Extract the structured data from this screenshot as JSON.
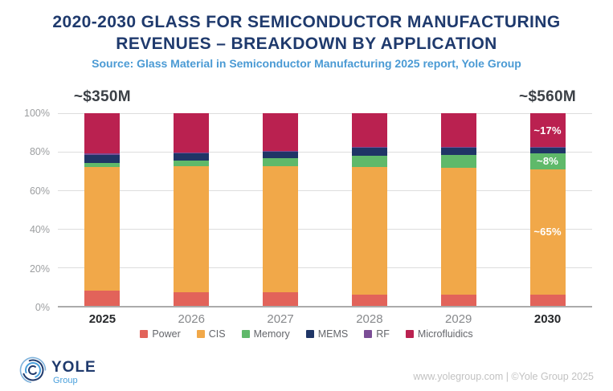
{
  "header": {
    "title_line1": "2020-2030 GLASS FOR SEMICONDUCTOR MANUFACTURING",
    "title_line2": "REVENUES – BREAKDOWN BY APPLICATION",
    "source": "Source: Glass Material in Semiconductor Manufacturing 2025 report, Yole Group"
  },
  "chart_data": {
    "type": "bar",
    "stacked": true,
    "normalized": "100% stacked",
    "title": "2020-2030 Glass for Semiconductor Manufacturing Revenues – Breakdown by Application",
    "xlabel": "",
    "ylabel": "",
    "ylim": [
      0,
      100
    ],
    "grid": true,
    "legend_position": "bottom",
    "categories": [
      "2025",
      "2026",
      "2027",
      "2028",
      "2029",
      "2030"
    ],
    "bold_categories": [
      "2025",
      "2030"
    ],
    "yticks": [
      "100%",
      "80%",
      "60%",
      "40%",
      "20%",
      "0%"
    ],
    "series": [
      {
        "name": "Power",
        "color": "#E2635A",
        "values": [
          8,
          7,
          7,
          6,
          6,
          6
        ]
      },
      {
        "name": "CIS",
        "color": "#F1A849",
        "values": [
          64,
          65.5,
          65.5,
          66,
          65.5,
          65
        ]
      },
      {
        "name": "Memory",
        "color": "#5FB96A",
        "values": [
          2,
          3,
          4,
          6,
          7,
          8
        ]
      },
      {
        "name": "MEMS",
        "color": "#1F3566",
        "values": [
          4.5,
          3.5,
          3.5,
          4,
          3.5,
          3
        ]
      },
      {
        "name": "RF",
        "color": "#7B4D96",
        "values": [
          0.5,
          0.5,
          0.5,
          0.5,
          0.5,
          0.5
        ]
      },
      {
        "name": "Microfluidics",
        "color": "#BA2150",
        "values": [
          21,
          20.5,
          19.5,
          17.5,
          17.5,
          17.5
        ]
      }
    ],
    "annotations": [
      {
        "text": "~$350M",
        "category": "2025"
      },
      {
        "text": "~$560M",
        "category": "2030"
      }
    ],
    "bar_labels": [
      {
        "category": "2030",
        "series": "Microfluidics",
        "text": "~17%"
      },
      {
        "category": "2030",
        "series": "Memory",
        "text": "~8%"
      },
      {
        "category": "2030",
        "series": "CIS",
        "text": "~65%"
      }
    ]
  },
  "footer": {
    "logo_text": "YOLE",
    "logo_subtext": "Group",
    "credit": "www.yolegroup.com | ©Yole Group 2025"
  }
}
